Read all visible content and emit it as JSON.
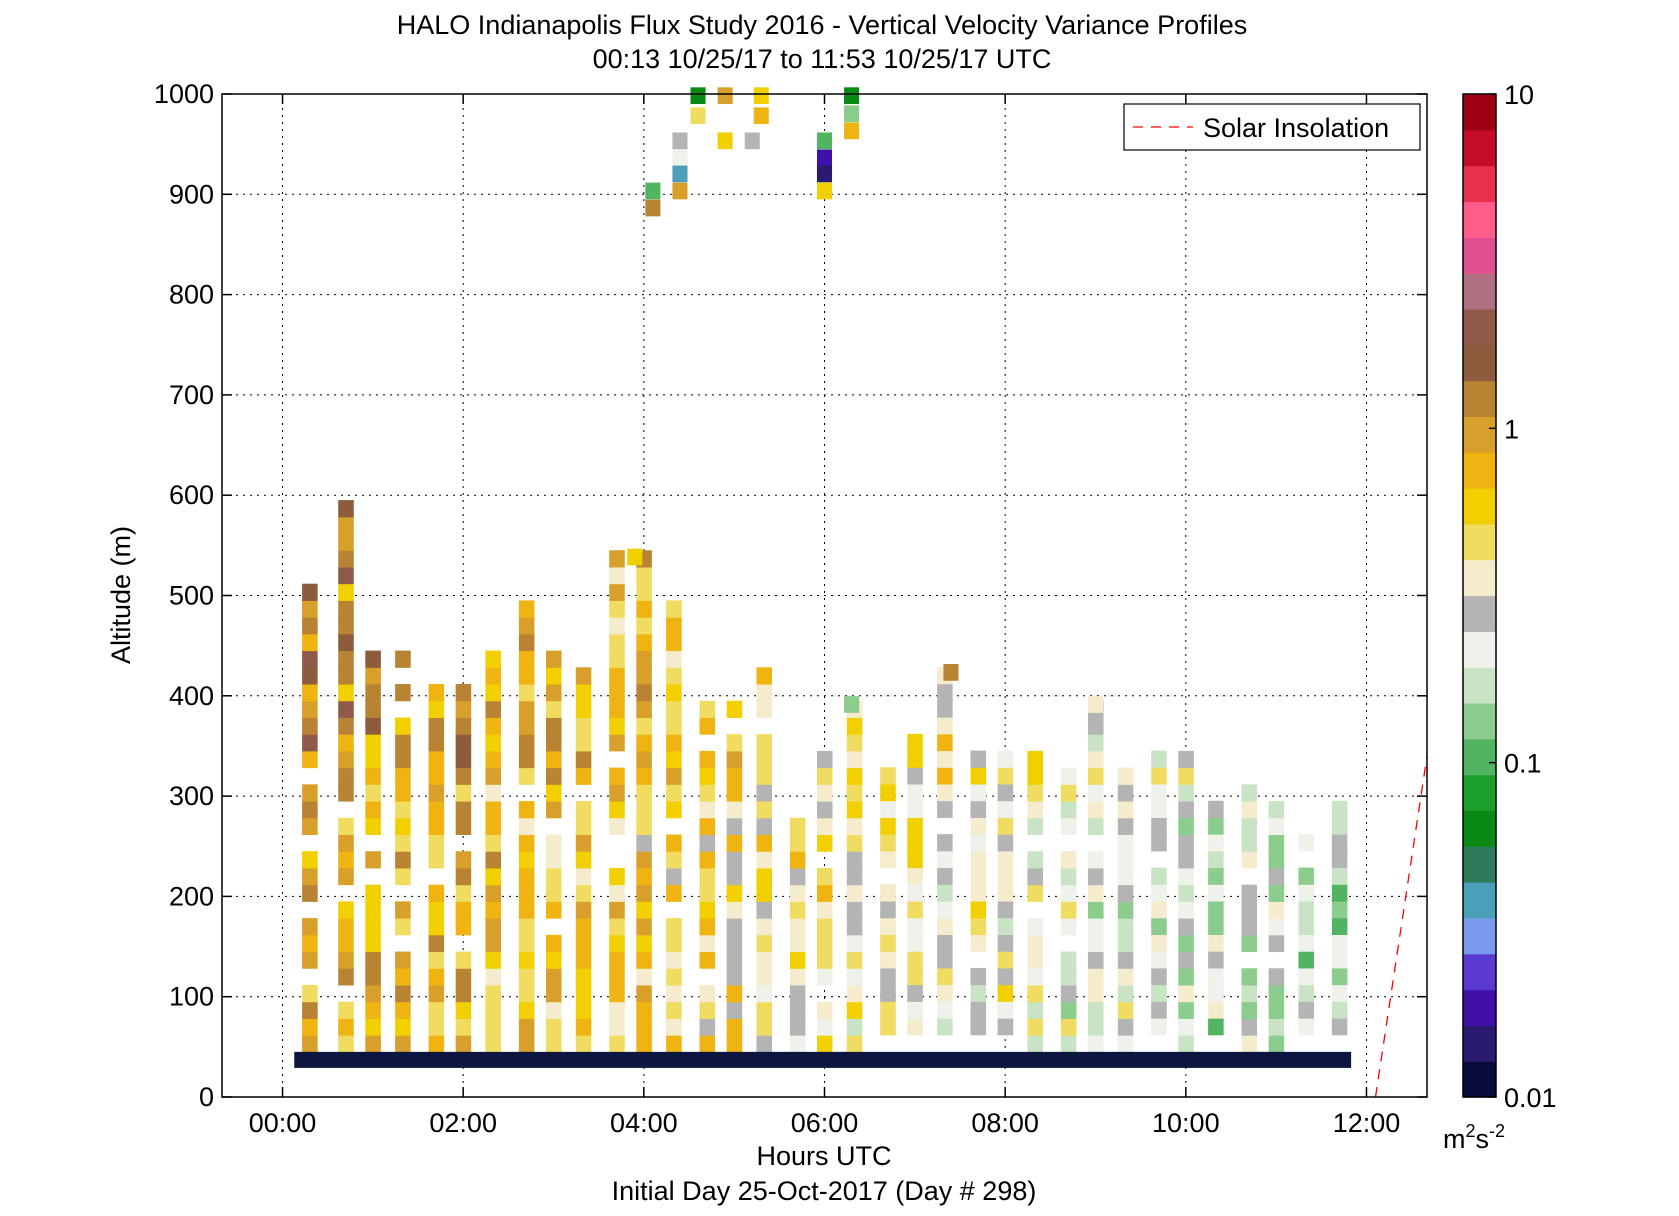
{
  "chart_data": {
    "type": "heatmap",
    "title_lines": [
      "HALO Indianapolis Flux Study 2016 - Vertical Velocity Variance Profiles",
      "00:13 10/25/17 to 11:53 10/25/17  UTC"
    ],
    "xlabel": "Hours UTC",
    "xlabel2": "Initial Day 25-Oct-2017 (Day # 298)",
    "ylabel": "Altitude (m)",
    "xlim": [
      -0.67,
      12.67
    ],
    "ylim": [
      0,
      1000
    ],
    "x_ticks": [
      0,
      2,
      4,
      6,
      8,
      10,
      12
    ],
    "x_tick_labels": [
      "00:00",
      "02:00",
      "04:00",
      "06:00",
      "08:00",
      "10:00",
      "12:00"
    ],
    "y_ticks": [
      0,
      100,
      200,
      300,
      400,
      500,
      600,
      700,
      800,
      900,
      1000
    ],
    "y_tick_labels": [
      "0",
      "100",
      "200",
      "300",
      "400",
      "500",
      "600",
      "700",
      "800",
      "900",
      "1000"
    ],
    "grid": true,
    "legend": {
      "placement": "top-right",
      "entries": [
        {
          "label": "Solar Insolation",
          "color": "#ff0000",
          "style": "dashed"
        }
      ]
    },
    "colorbar": {
      "scale": "log",
      "range": [
        0.01,
        10
      ],
      "tick_values": [
        0.01,
        0.1,
        1,
        10
      ],
      "tick_labels": [
        "0.01",
        "0.1",
        "1",
        "10"
      ],
      "unit_base": "m",
      "unit_sup1": "2",
      "unit_mid": "s",
      "unit_sup2": "-2",
      "colors": [
        "#0a0a3c",
        "#2a1a70",
        "#4010a8",
        "#5a3ad0",
        "#7a9af0",
        "#4aa0b8",
        "#2e7a5a",
        "#0a8a14",
        "#1aa02a",
        "#50b460",
        "#8ccc8c",
        "#c8e4c4",
        "#eef2ea",
        "#b4b4b4",
        "#f4eccc",
        "#f0dc60",
        "#f2d000",
        "#f0b412",
        "#d8a02a",
        "#b88434",
        "#8c5c3c",
        "#905a4a",
        "#b07080",
        "#e05090",
        "#ff5c8c",
        "#e8304c",
        "#c40c28",
        "#a00014"
      ]
    },
    "solar_insolation_line": {
      "x": [
        12.1,
        12.67
      ],
      "y": [
        0,
        340
      ]
    },
    "bin_width_hours": 0.1667,
    "bin_height_m": 16.67,
    "ground_band": {
      "x": [
        0.13,
        11.83
      ],
      "y": [
        29,
        45
      ],
      "color": "#0d1640"
    },
    "columns": [
      {
        "x": 0.3,
        "top": 505,
        "base": 45,
        "seed": 1
      },
      {
        "x": 0.7,
        "top": 585,
        "base": 45,
        "seed": 2
      },
      {
        "x": 1.0,
        "top": 440,
        "base": 45,
        "seed": 3
      },
      {
        "x": 1.33,
        "top": 435,
        "base": 45,
        "seed": 4
      },
      {
        "x": 1.7,
        "top": 410,
        "base": 45,
        "seed": 5
      },
      {
        "x": 2.0,
        "top": 410,
        "base": 45,
        "seed": 6
      },
      {
        "x": 2.33,
        "top": 435,
        "base": 45,
        "seed": 7
      },
      {
        "x": 2.7,
        "top": 485,
        "base": 45,
        "seed": 8
      },
      {
        "x": 3.0,
        "top": 435,
        "base": 45,
        "seed": 9
      },
      {
        "x": 3.33,
        "top": 435,
        "base": 45,
        "seed": 10
      },
      {
        "x": 3.7,
        "top": 535,
        "base": 45,
        "seed": 11
      },
      {
        "x": 4.0,
        "top": 535,
        "base": 45,
        "seed": 12
      },
      {
        "x": 4.33,
        "top": 485,
        "base": 45,
        "seed": 13
      },
      {
        "x": 4.7,
        "top": 410,
        "base": 45,
        "seed": 14
      },
      {
        "x": 5.0,
        "top": 395,
        "base": 45,
        "seed": 15
      },
      {
        "x": 5.33,
        "top": 420,
        "base": 45,
        "seed": 16
      },
      {
        "x": 5.7,
        "top": 270,
        "base": 45,
        "seed": 17
      },
      {
        "x": 6.0,
        "top": 345,
        "base": 45,
        "seed": 18
      },
      {
        "x": 6.33,
        "top": 390,
        "base": 45,
        "seed": 19
      },
      {
        "x": 6.7,
        "top": 320,
        "base": 62,
        "seed": 20
      },
      {
        "x": 7.0,
        "top": 360,
        "base": 62,
        "seed": 21
      },
      {
        "x": 7.33,
        "top": 425,
        "base": 62,
        "seed": 22
      },
      {
        "x": 7.7,
        "top": 360,
        "base": 62,
        "seed": 23
      },
      {
        "x": 8.0,
        "top": 340,
        "base": 62,
        "seed": 24
      },
      {
        "x": 8.33,
        "top": 340,
        "base": 45,
        "seed": 25
      },
      {
        "x": 8.7,
        "top": 320,
        "base": 45,
        "seed": 26
      },
      {
        "x": 9.0,
        "top": 390,
        "base": 45,
        "seed": 27
      },
      {
        "x": 9.33,
        "top": 335,
        "base": 45,
        "seed": 28
      },
      {
        "x": 9.7,
        "top": 340,
        "base": 62,
        "seed": 29
      },
      {
        "x": 10.0,
        "top": 340,
        "base": 45,
        "seed": 30
      },
      {
        "x": 10.33,
        "top": 295,
        "base": 62,
        "seed": 31
      },
      {
        "x": 10.7,
        "top": 320,
        "base": 45,
        "seed": 32
      },
      {
        "x": 11.0,
        "top": 310,
        "base": 45,
        "seed": 33
      },
      {
        "x": 11.33,
        "top": 260,
        "base": 62,
        "seed": 34
      },
      {
        "x": 11.7,
        "top": 295,
        "base": 62,
        "seed": 35
      }
    ],
    "sparse_cells": [
      {
        "x": 4.6,
        "y": 990,
        "v": 0.07
      },
      {
        "x": 4.9,
        "y": 990,
        "v": 0.9
      },
      {
        "x": 5.3,
        "y": 990,
        "v": 0.6
      },
      {
        "x": 4.6,
        "y": 970,
        "v": 0.5
      },
      {
        "x": 5.3,
        "y": 970,
        "v": 0.7
      },
      {
        "x": 4.4,
        "y": 945,
        "v": 0.3
      },
      {
        "x": 4.9,
        "y": 945,
        "v": 0.6
      },
      {
        "x": 5.2,
        "y": 945,
        "v": 0.3
      },
      {
        "x": 4.4,
        "y": 928,
        "v": 0.22
      },
      {
        "x": 4.4,
        "y": 912,
        "v": 0.04
      },
      {
        "x": 4.1,
        "y": 895,
        "v": 0.1
      },
      {
        "x": 4.4,
        "y": 895,
        "v": 0.9
      },
      {
        "x": 4.1,
        "y": 878,
        "v": 1.2
      },
      {
        "x": 6.3,
        "y": 990,
        "v": 0.07
      },
      {
        "x": 6.3,
        "y": 972,
        "v": 0.13
      },
      {
        "x": 6.3,
        "y": 955,
        "v": 0.7
      },
      {
        "x": 6.0,
        "y": 945,
        "v": 0.1
      },
      {
        "x": 6.0,
        "y": 928,
        "v": 0.02
      },
      {
        "x": 6.0,
        "y": 912,
        "v": 0.015
      },
      {
        "x": 6.0,
        "y": 895,
        "v": 0.6
      },
      {
        "x": 3.9,
        "y": 530,
        "v": 0.6
      },
      {
        "x": 7.4,
        "y": 415,
        "v": 1.2
      },
      {
        "x": 6.3,
        "y": 383,
        "v": 0.13
      },
      {
        "x": 9.0,
        "y": 383,
        "v": 0.35
      }
    ]
  }
}
